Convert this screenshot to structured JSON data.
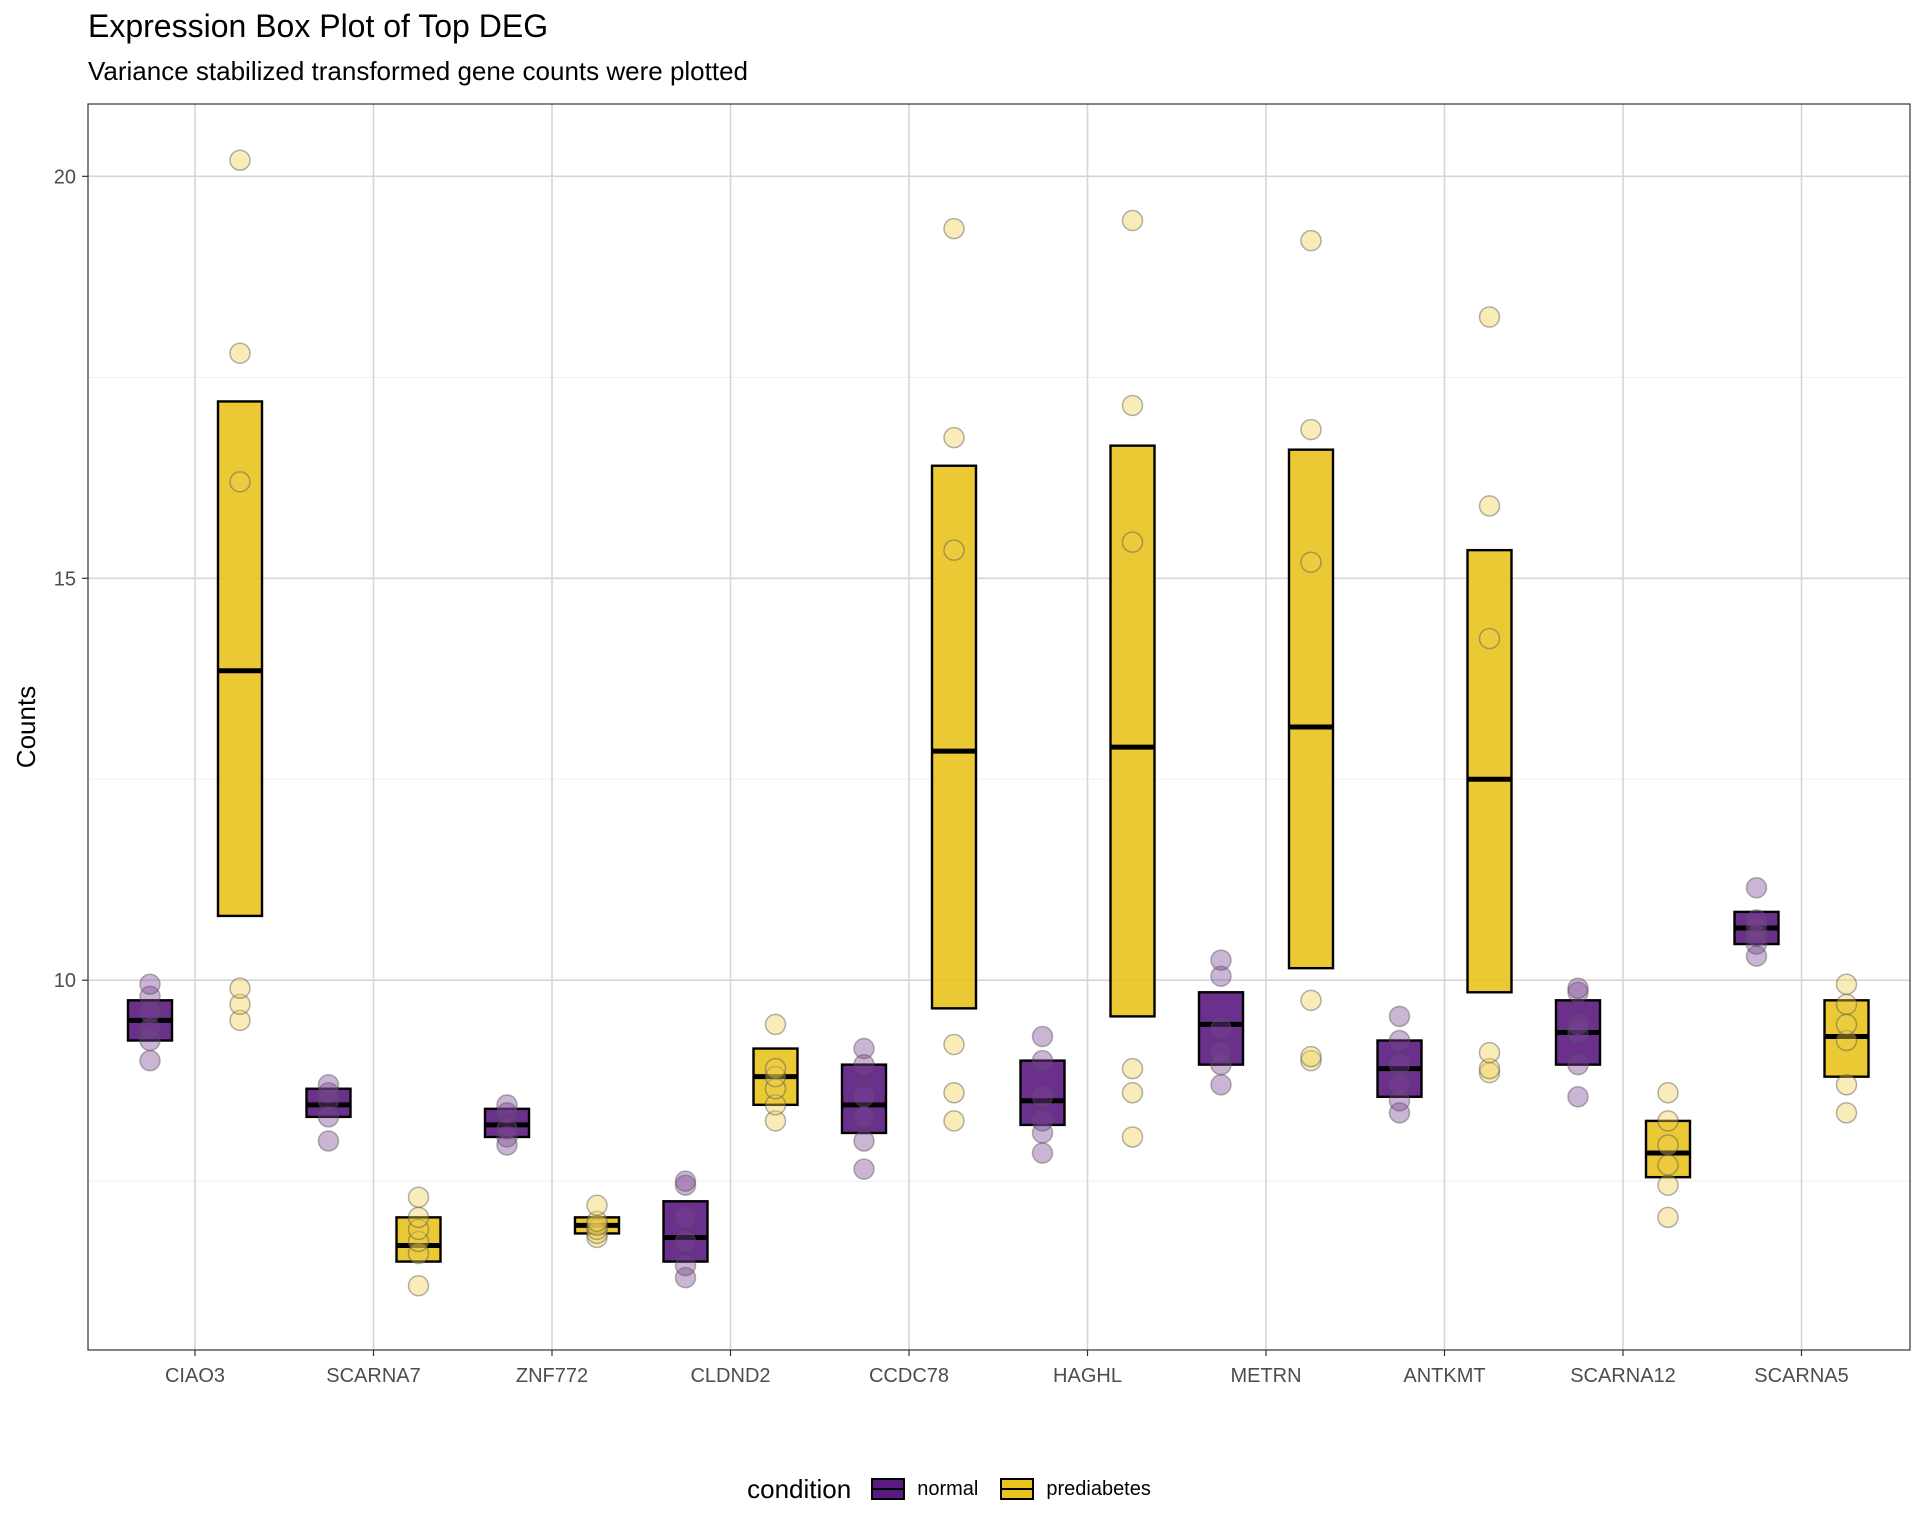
{
  "chart_data": {
    "type": "box",
    "title": "Expression Box Plot of Top DEG",
    "subtitle": "Variance stabilized transformed gene counts were plotted",
    "xlabel": "",
    "ylabel": "Counts",
    "ylim": [
      5.4,
      20.9
    ],
    "yticks": [
      10,
      15,
      20
    ],
    "grid": true,
    "legend_position": "bottom",
    "legend_title": "condition",
    "categories": [
      "CIAO3",
      "SCARNA7",
      "ZNF772",
      "CLDND2",
      "CCDC78",
      "HAGHL",
      "METRN",
      "ANTKMT",
      "SCARNA12",
      "SCARNA5"
    ],
    "series": [
      {
        "name": "normal",
        "color": "#5a1a7f",
        "boxes": [
          {
            "q1": 9.25,
            "median": 9.5,
            "q3": 9.75
          },
          {
            "q1": 8.3,
            "median": 8.45,
            "q3": 8.65
          },
          {
            "q1": 8.05,
            "median": 8.2,
            "q3": 8.4
          },
          {
            "q1": 6.5,
            "median": 6.8,
            "q3": 7.25
          },
          {
            "q1": 8.1,
            "median": 8.45,
            "q3": 8.95
          },
          {
            "q1": 8.2,
            "median": 8.5,
            "q3": 9.0
          },
          {
            "q1": 8.95,
            "median": 9.45,
            "q3": 9.85
          },
          {
            "q1": 8.55,
            "median": 8.9,
            "q3": 9.25
          },
          {
            "q1": 8.95,
            "median": 9.35,
            "q3": 9.75
          },
          {
            "q1": 10.45,
            "median": 10.65,
            "q3": 10.85
          }
        ],
        "points": [
          [
            9.0,
            9.25,
            9.4,
            9.6,
            9.8,
            9.95
          ],
          [
            8.0,
            8.3,
            8.5,
            8.6,
            8.7
          ],
          [
            7.95,
            8.05,
            8.15,
            8.35,
            8.45
          ],
          [
            6.3,
            6.45,
            6.75,
            7.05,
            7.45,
            7.5
          ],
          [
            7.65,
            8.0,
            8.3,
            8.55,
            8.95,
            9.15
          ],
          [
            7.85,
            8.1,
            8.25,
            8.55,
            9.0,
            9.3
          ],
          [
            8.7,
            8.95,
            9.1,
            9.4,
            10.05,
            10.25
          ],
          [
            8.35,
            8.5,
            8.7,
            8.95,
            9.25,
            9.55
          ],
          [
            8.55,
            8.95,
            9.35,
            9.45,
            9.85,
            9.9
          ],
          [
            10.3,
            10.45,
            10.55,
            10.65,
            10.75,
            11.15
          ]
        ]
      },
      {
        "name": "prediabetes",
        "color": "#e9c31e",
        "boxes": [
          {
            "q1": 10.8,
            "median": 13.85,
            "q3": 17.2
          },
          {
            "q1": 6.5,
            "median": 6.7,
            "q3": 7.05
          },
          {
            "q1": 6.85,
            "median": 6.95,
            "q3": 7.05
          },
          {
            "q1": 8.45,
            "median": 8.8,
            "q3": 9.15
          },
          {
            "q1": 9.65,
            "median": 12.85,
            "q3": 16.4
          },
          {
            "q1": 9.55,
            "median": 12.9,
            "q3": 16.65
          },
          {
            "q1": 10.15,
            "median": 13.15,
            "q3": 16.6
          },
          {
            "q1": 9.85,
            "median": 12.5,
            "q3": 15.35
          },
          {
            "q1": 7.55,
            "median": 7.85,
            "q3": 8.25
          },
          {
            "q1": 8.8,
            "median": 9.3,
            "q3": 9.75
          }
        ],
        "points": [
          [
            9.5,
            9.7,
            9.9,
            16.2,
            17.8,
            20.2
          ],
          [
            6.2,
            6.6,
            6.75,
            6.9,
            7.05,
            7.3
          ],
          [
            6.8,
            6.85,
            6.9,
            6.95,
            7.0,
            7.2
          ],
          [
            8.25,
            8.45,
            8.65,
            8.8,
            8.9,
            9.45
          ],
          [
            8.25,
            8.6,
            9.2,
            15.35,
            16.75,
            19.35
          ],
          [
            8.05,
            8.6,
            8.9,
            15.45,
            17.15,
            19.45
          ],
          [
            9.0,
            9.05,
            9.75,
            15.2,
            16.85,
            19.2
          ],
          [
            8.85,
            8.9,
            9.1,
            14.25,
            15.9,
            18.25
          ],
          [
            7.05,
            7.45,
            7.7,
            7.95,
            8.25,
            8.6
          ],
          [
            8.35,
            8.7,
            9.25,
            9.45,
            9.7,
            9.95
          ]
        ]
      }
    ]
  }
}
